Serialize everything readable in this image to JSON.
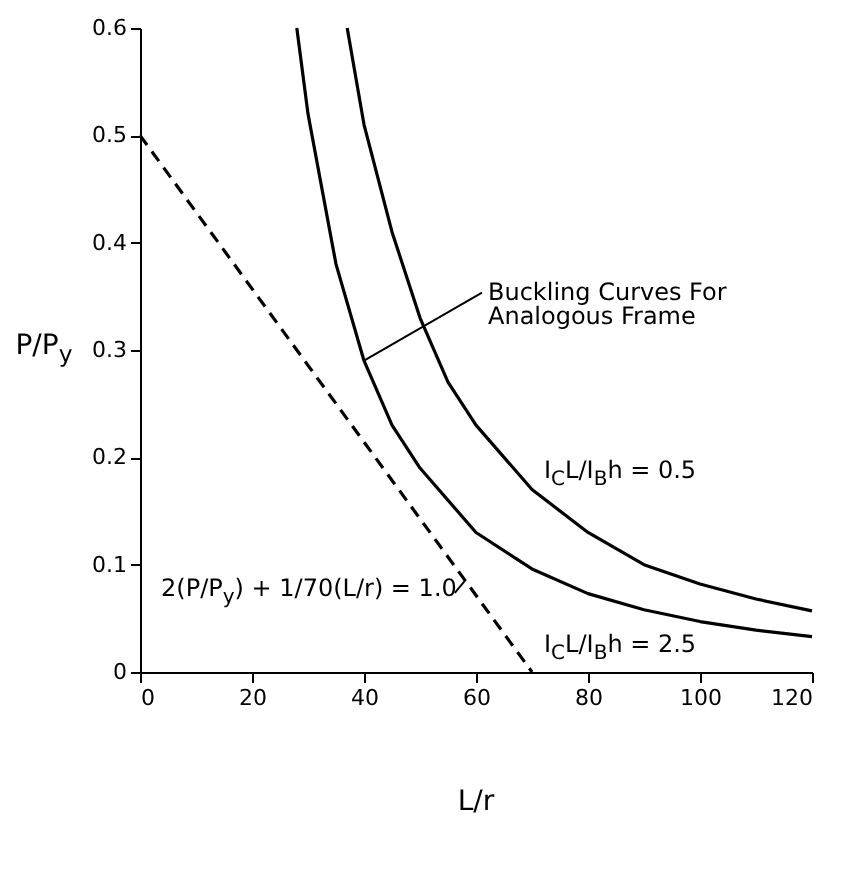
{
  "chart_data": {
    "type": "line",
    "xlabel": "L/r",
    "ylabel": "P/P$_{y}$",
    "xlim": [
      0,
      120
    ],
    "ylim": [
      0,
      0.6
    ],
    "xticks": [
      0,
      20,
      40,
      60,
      80,
      100,
      120
    ],
    "yticks": [
      0,
      0.1,
      0.2,
      0.3,
      0.4,
      0.5,
      0.6
    ],
    "grid": false,
    "marker": "none",
    "series": [
      {
        "name": "I$_{C}$L/I$_{B}$h = 0.5",
        "color": "#000000",
        "line_style": "solid",
        "x": [
          37,
          40,
          45,
          50,
          55,
          60,
          70,
          80,
          90,
          100,
          110,
          120
        ],
        "values": [
          0.6,
          0.51,
          0.41,
          0.33,
          0.27,
          0.23,
          0.17,
          0.13,
          0.1,
          0.082,
          0.068,
          0.057
        ]
      },
      {
        "name": "I$_{C}$L/I$_{B}$h = 2.5",
        "color": "#000000",
        "line_style": "solid",
        "x": [
          28,
          30,
          35,
          40,
          45,
          50,
          60,
          70,
          80,
          90,
          100,
          110,
          120
        ],
        "values": [
          0.6,
          0.52,
          0.38,
          0.29,
          0.23,
          0.19,
          0.13,
          0.096,
          0.073,
          0.058,
          0.047,
          0.039,
          0.033
        ]
      },
      {
        "color": "#000000",
        "line_style": "dashed",
        "x": [
          0,
          70
        ],
        "values": [
          0.5,
          0
        ]
      }
    ],
    "annotations": [
      {
        "text": "Buckling Curves For Analogous Frame",
        "x": 40,
        "y": 0.29
      },
      {
        "text": "2(P/P$_{y}$) + 1/70(L/r) = 1.0",
        "x": 58,
        "y": 0.085
      }
    ]
  }
}
